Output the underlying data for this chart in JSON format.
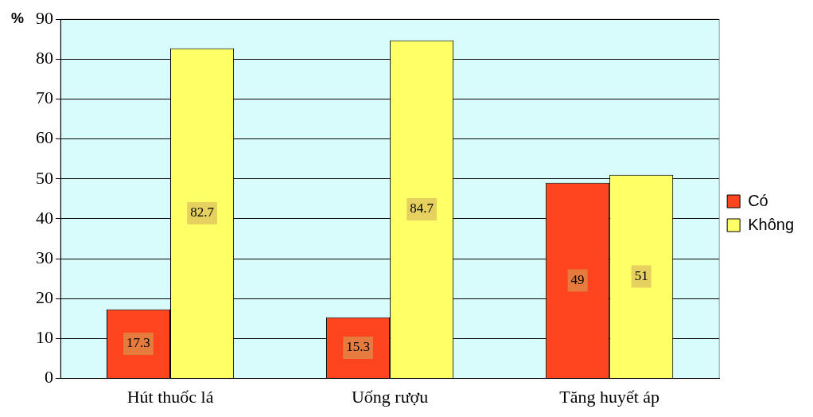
{
  "chart_data": {
    "type": "bar",
    "categories": [
      "Hút thuốc lá",
      "Uống rượu",
      "Tăng huyết áp"
    ],
    "series": [
      {
        "name": "Có",
        "color": "#ff4420",
        "values": [
          17.3,
          15.3,
          49
        ]
      },
      {
        "name": "Không",
        "color": "#ffff66",
        "values": [
          82.7,
          84.7,
          51
        ]
      }
    ],
    "ylabel": "%",
    "ylim": [
      0,
      90
    ],
    "yticks": [
      0,
      10,
      20,
      30,
      40,
      50,
      60,
      70,
      80,
      90
    ],
    "grid": "y",
    "legend": "right",
    "data_labels": true
  }
}
